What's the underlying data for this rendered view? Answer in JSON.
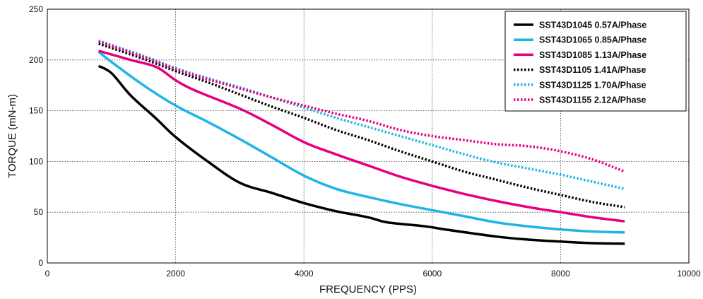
{
  "chart_data": {
    "type": "line",
    "xlabel": "FREQUENCY (PPS)",
    "ylabel": "TORQUE (mN-m)",
    "xlim": [
      0,
      10000
    ],
    "ylim": [
      0,
      250
    ],
    "x_ticks": [
      0,
      2000,
      4000,
      6000,
      8000,
      10000
    ],
    "y_ticks": [
      0,
      50,
      100,
      150,
      200,
      250
    ],
    "grid": "dotted",
    "legend_position": "top-right",
    "series": [
      {
        "name": "SST43D1045  0.57A/Phase",
        "color": "#000000",
        "style": "solid",
        "points": [
          [
            800,
            194
          ],
          [
            1000,
            187
          ],
          [
            1300,
            165
          ],
          [
            1700,
            142
          ],
          [
            2000,
            124
          ],
          [
            2500,
            100
          ],
          [
            3000,
            79
          ],
          [
            3500,
            69
          ],
          [
            4000,
            59
          ],
          [
            4500,
            51
          ],
          [
            5000,
            45
          ],
          [
            5300,
            40
          ],
          [
            5900,
            36
          ],
          [
            6200,
            33
          ],
          [
            7000,
            26
          ],
          [
            7500,
            23
          ],
          [
            8000,
            21
          ],
          [
            8500,
            19.5
          ],
          [
            9000,
            19
          ]
        ]
      },
      {
        "name": "SST43D1065  0.85A/Phase",
        "color": "#1fb4e6",
        "style": "solid",
        "points": [
          [
            800,
            208
          ],
          [
            1000,
            198
          ],
          [
            1500,
            175
          ],
          [
            2000,
            155
          ],
          [
            2500,
            139
          ],
          [
            3000,
            122
          ],
          [
            3500,
            104
          ],
          [
            4000,
            86
          ],
          [
            4500,
            73
          ],
          [
            5000,
            65
          ],
          [
            5500,
            58
          ],
          [
            6000,
            52
          ],
          [
            6500,
            46
          ],
          [
            7000,
            40
          ],
          [
            7500,
            36
          ],
          [
            8000,
            33
          ],
          [
            8500,
            31
          ],
          [
            9000,
            30
          ]
        ]
      },
      {
        "name": "SST43D1085  1.13A/Phase",
        "color": "#e5007e",
        "style": "solid",
        "points": [
          [
            800,
            209
          ],
          [
            1300,
            200
          ],
          [
            1700,
            193
          ],
          [
            2000,
            180
          ],
          [
            2300,
            170
          ],
          [
            3000,
            152
          ],
          [
            3500,
            136
          ],
          [
            4000,
            119
          ],
          [
            4500,
            107
          ],
          [
            5000,
            96
          ],
          [
            5500,
            85
          ],
          [
            6000,
            76
          ],
          [
            6500,
            68
          ],
          [
            7000,
            61
          ],
          [
            7500,
            55
          ],
          [
            8000,
            50
          ],
          [
            8500,
            45
          ],
          [
            9000,
            41
          ]
        ]
      },
      {
        "name": "SST43D1105  1.41A/Phase",
        "color": "#000000",
        "style": "dotted",
        "points": [
          [
            800,
            216
          ],
          [
            1500,
            201
          ],
          [
            2000,
            189
          ],
          [
            2500,
            178
          ],
          [
            3000,
            166
          ],
          [
            3500,
            154
          ],
          [
            4000,
            143
          ],
          [
            4500,
            131
          ],
          [
            5000,
            121
          ],
          [
            5500,
            110
          ],
          [
            6000,
            100
          ],
          [
            6500,
            90
          ],
          [
            7000,
            82
          ],
          [
            7500,
            74
          ],
          [
            8000,
            67
          ],
          [
            8500,
            60
          ],
          [
            9000,
            55
          ]
        ]
      },
      {
        "name": "SST43D1125  1.70A/Phase",
        "color": "#1fb4e6",
        "style": "dotted",
        "points": [
          [
            800,
            219
          ],
          [
            1500,
            204
          ],
          [
            2000,
            192
          ],
          [
            2500,
            182
          ],
          [
            3000,
            173
          ],
          [
            3500,
            163
          ],
          [
            4000,
            153
          ],
          [
            4500,
            143
          ],
          [
            5000,
            134
          ],
          [
            5500,
            125
          ],
          [
            6000,
            116
          ],
          [
            6500,
            107
          ],
          [
            7000,
            99
          ],
          [
            7500,
            93
          ],
          [
            8000,
            87
          ],
          [
            8500,
            80
          ],
          [
            9000,
            73
          ]
        ]
      },
      {
        "name": "SST43D1155  2.12A/Phase",
        "color": "#e5007e",
        "style": "dotted",
        "points": [
          [
            800,
            218
          ],
          [
            1500,
            203
          ],
          [
            2000,
            191
          ],
          [
            2500,
            181
          ],
          [
            3000,
            172
          ],
          [
            3500,
            163
          ],
          [
            4000,
            155
          ],
          [
            4500,
            147
          ],
          [
            5000,
            140
          ],
          [
            5500,
            131
          ],
          [
            6000,
            125
          ],
          [
            6500,
            121
          ],
          [
            7000,
            117
          ],
          [
            7500,
            115
          ],
          [
            8000,
            110
          ],
          [
            8500,
            102
          ],
          [
            9000,
            90
          ]
        ]
      }
    ]
  }
}
